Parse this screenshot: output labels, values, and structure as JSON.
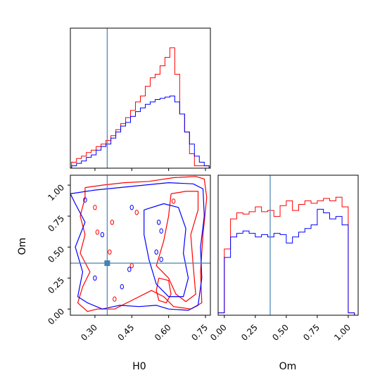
{
  "colors": {
    "red_series": "#ff0000",
    "blue_series": "#0000ff",
    "truth": "#4682b4",
    "frame": "#000000"
  },
  "chart_data": {
    "type": "corner",
    "parameters": [
      "H0",
      "Om"
    ],
    "truth": {
      "H0": 0.35,
      "Om": 0.37
    },
    "series_colors": [
      "red",
      "blue"
    ],
    "panels": [
      {
        "name": "H0-marginal",
        "type": "histogram",
        "xlim": [
          0.2,
          0.77
        ],
        "bins": [
          0.205,
          0.225,
          0.245,
          0.265,
          0.285,
          0.305,
          0.325,
          0.345,
          0.365,
          0.385,
          0.405,
          0.425,
          0.445,
          0.465,
          0.485,
          0.505,
          0.525,
          0.545,
          0.565,
          0.585,
          0.605,
          0.625,
          0.645,
          0.665,
          0.685,
          0.705,
          0.725,
          0.745,
          0.765
        ],
        "series": [
          {
            "color": "red",
            "values": [
              0.05,
              0.08,
              0.1,
              0.13,
              0.15,
              0.18,
              0.2,
              0.23,
              0.27,
              0.32,
              0.37,
              0.42,
              0.48,
              0.55,
              0.6,
              0.68,
              0.75,
              0.78,
              0.85,
              0.92,
              1.0,
              0.78,
              0.45,
              0.3,
              0.12,
              0.02,
              0.02,
              0.02
            ]
          },
          {
            "color": "blue",
            "values": [
              0.02,
              0.04,
              0.06,
              0.09,
              0.11,
              0.15,
              0.18,
              0.2,
              0.25,
              0.3,
              0.35,
              0.38,
              0.43,
              0.47,
              0.5,
              0.53,
              0.55,
              0.57,
              0.58,
              0.59,
              0.6,
              0.55,
              0.45,
              0.3,
              0.2,
              0.1,
              0.05,
              0.02
            ]
          }
        ]
      },
      {
        "name": "Om-marginal",
        "type": "histogram",
        "xlim": [
          -0.05,
          1.08
        ],
        "xticks": [
          "0.00",
          "0.25",
          "0.50",
          "0.75",
          "1.00"
        ],
        "xlabel": "Om",
        "bins": [
          -0.05,
          0.0,
          0.05,
          0.1,
          0.15,
          0.2,
          0.25,
          0.3,
          0.35,
          0.4,
          0.45,
          0.5,
          0.55,
          0.6,
          0.65,
          0.7,
          0.75,
          0.8,
          0.85,
          0.9,
          0.95,
          1.0,
          1.05
        ],
        "series": [
          {
            "color": "red",
            "values": [
              0.02,
              0.55,
              0.8,
              0.85,
              0.84,
              0.86,
              0.9,
              0.86,
              0.87,
              0.82,
              0.91,
              0.95,
              0.87,
              0.92,
              0.95,
              0.93,
              0.95,
              0.97,
              0.95,
              0.98,
              0.9,
              0.02
            ]
          },
          {
            "color": "blue",
            "values": [
              0.02,
              0.48,
              0.65,
              0.68,
              0.7,
              0.68,
              0.65,
              0.67,
              0.65,
              0.68,
              0.67,
              0.6,
              0.65,
              0.69,
              0.72,
              0.75,
              0.88,
              0.85,
              0.8,
              0.82,
              0.75,
              0.02
            ]
          }
        ]
      },
      {
        "name": "H0-Om-joint",
        "type": "contour",
        "xlim": [
          0.2,
          0.77
        ],
        "ylim": [
          -0.05,
          1.08
        ],
        "xticks": [
          "0.30",
          "0.45",
          "0.60",
          "0.75"
        ],
        "yticks": [
          "0.00",
          "0.25",
          "0.50",
          "0.75",
          "1.00"
        ],
        "xlabel": "H0",
        "ylabel": "Om",
        "contours": [
          {
            "color": "red",
            "points": [
              [
                0.26,
                0.98
              ],
              [
                0.33,
                1.0
              ],
              [
                0.42,
                1.02
              ],
              [
                0.52,
                1.03
              ],
              [
                0.62,
                1.06
              ],
              [
                0.71,
                1.07
              ],
              [
                0.745,
                1.05
              ],
              [
                0.755,
                0.9
              ],
              [
                0.74,
                0.6
              ],
              [
                0.73,
                0.3
              ],
              [
                0.735,
                0.05
              ],
              [
                0.69,
                0.0
              ],
              [
                0.62,
                0.02
              ],
              [
                0.58,
                0.1
              ],
              [
                0.53,
                0.15
              ],
              [
                0.45,
                0.07
              ],
              [
                0.38,
                0.0
              ],
              [
                0.31,
                0.0
              ],
              [
                0.27,
                -0.02
              ],
              [
                0.23,
                0.05
              ],
              [
                0.25,
                0.18
              ],
              [
                0.28,
                0.3
              ],
              [
                0.24,
                0.45
              ],
              [
                0.26,
                0.6
              ],
              [
                0.24,
                0.75
              ],
              [
                0.26,
                0.9
              ],
              [
                0.26,
                0.98
              ]
            ]
          },
          {
            "color": "red",
            "points": [
              [
                0.61,
                0.93
              ],
              [
                0.67,
                0.95
              ],
              [
                0.72,
                0.95
              ],
              [
                0.72,
                0.8
              ],
              [
                0.69,
                0.6
              ],
              [
                0.7,
                0.35
              ],
              [
                0.71,
                0.12
              ],
              [
                0.67,
                0.06
              ],
              [
                0.63,
                0.12
              ],
              [
                0.6,
                0.25
              ],
              [
                0.55,
                0.35
              ],
              [
                0.58,
                0.55
              ],
              [
                0.6,
                0.75
              ],
              [
                0.61,
                0.93
              ]
            ]
          },
          {
            "color": "red",
            "points": [
              [
                0.56,
                0.25
              ],
              [
                0.6,
                0.23
              ],
              [
                0.61,
                0.12
              ],
              [
                0.59,
                0.05
              ],
              [
                0.56,
                0.07
              ],
              [
                0.55,
                0.15
              ],
              [
                0.56,
                0.25
              ]
            ]
          },
          {
            "color": "blue",
            "points": [
              [
                0.2,
                0.93
              ],
              [
                0.3,
                0.96
              ],
              [
                0.4,
                0.98
              ],
              [
                0.5,
                1.0
              ],
              [
                0.6,
                1.02
              ],
              [
                0.7,
                1.01
              ],
              [
                0.74,
                0.97
              ],
              [
                0.745,
                0.75
              ],
              [
                0.73,
                0.5
              ],
              [
                0.735,
                0.25
              ],
              [
                0.72,
                0.03
              ],
              [
                0.68,
                -0.01
              ],
              [
                0.6,
                0.0
              ],
              [
                0.55,
                0.03
              ],
              [
                0.48,
                0.02
              ],
              [
                0.4,
                0.03
              ],
              [
                0.33,
                0.0
              ],
              [
                0.27,
                0.05
              ],
              [
                0.23,
                0.1
              ],
              [
                0.25,
                0.3
              ],
              [
                0.22,
                0.5
              ],
              [
                0.26,
                0.7
              ],
              [
                0.22,
                0.85
              ],
              [
                0.2,
                0.93
              ]
            ]
          },
          {
            "color": "blue",
            "points": [
              [
                0.5,
                0.8
              ],
              [
                0.58,
                0.85
              ],
              [
                0.64,
                0.82
              ],
              [
                0.67,
                0.65
              ],
              [
                0.66,
                0.45
              ],
              [
                0.68,
                0.25
              ],
              [
                0.66,
                0.1
              ],
              [
                0.6,
                0.1
              ],
              [
                0.55,
                0.2
              ],
              [
                0.52,
                0.4
              ],
              [
                0.5,
                0.6
              ],
              [
                0.5,
                0.8
              ]
            ]
          }
        ]
      }
    ]
  }
}
